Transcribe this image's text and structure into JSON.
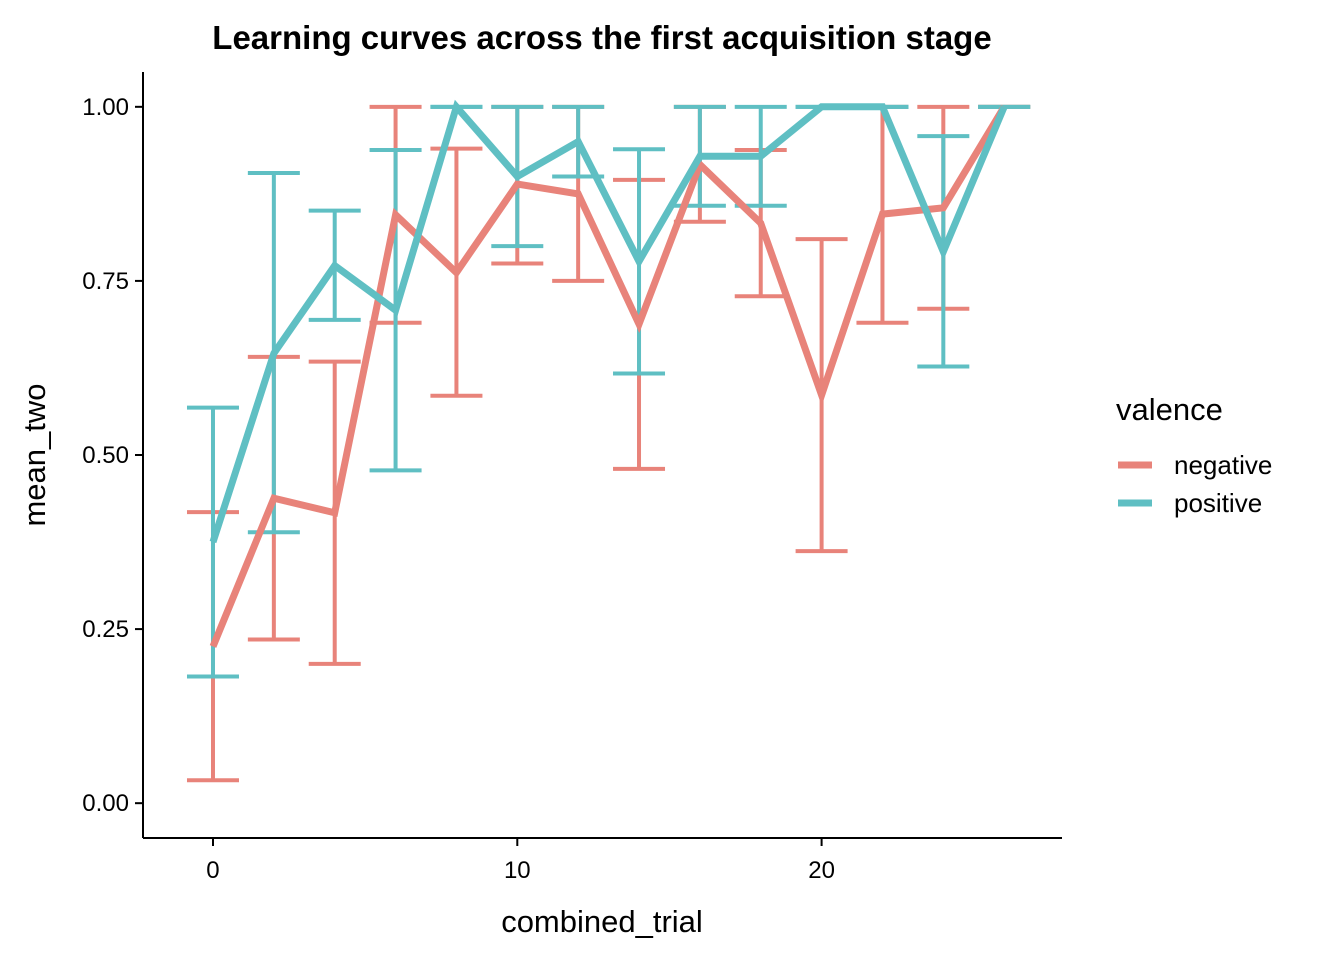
{
  "chart_data": {
    "type": "line",
    "title": "Learning curves across the first acquisition stage",
    "xlabel": "combined_trial",
    "ylabel": "mean_two",
    "xlim": [
      -2.3,
      27.9
    ],
    "ylim": [
      -0.05,
      1.05
    ],
    "x_ticks": [
      0,
      10,
      20
    ],
    "x_tick_labels": [
      "0",
      "10",
      "20"
    ],
    "y_ticks": [
      0,
      0.25,
      0.5,
      0.75,
      1.0
    ],
    "y_tick_labels": [
      "0.00",
      "0.25",
      "0.50",
      "0.75",
      "1.00"
    ],
    "grid": false,
    "legend": {
      "title": "valence",
      "position": "right"
    },
    "series": [
      {
        "name": "negative",
        "color": "#E8837A",
        "x": [
          0,
          2,
          4,
          6,
          8,
          10,
          12,
          14,
          16,
          18,
          20,
          22,
          24,
          26
        ],
        "y": [
          0.225,
          0.438,
          0.417,
          0.845,
          0.762,
          0.889,
          0.875,
          0.688,
          0.917,
          0.833,
          0.586,
          0.846,
          0.855,
          1.0
        ],
        "ymin": [
          0.033,
          0.235,
          0.2,
          0.69,
          0.585,
          0.775,
          0.75,
          0.48,
          0.835,
          0.728,
          0.362,
          0.69,
          0.71,
          1.0
        ],
        "ymax": [
          0.418,
          0.641,
          0.634,
          1.0,
          0.94,
          1.0,
          1.0,
          0.895,
          1.0,
          0.938,
          0.81,
          1.0,
          1.0,
          1.0
        ]
      },
      {
        "name": "positive",
        "color": "#5FBFC3",
        "x": [
          0,
          2,
          4,
          6,
          8,
          10,
          12,
          14,
          16,
          18,
          20,
          22,
          24,
          26
        ],
        "y": [
          0.375,
          0.646,
          0.772,
          0.708,
          1.0,
          0.9,
          0.95,
          0.778,
          0.929,
          0.929,
          1.0,
          1.0,
          0.792,
          1.0
        ],
        "ymin": [
          0.182,
          0.389,
          0.694,
          0.478,
          1.0,
          0.8,
          0.9,
          0.617,
          0.858,
          0.858,
          1.0,
          1.0,
          0.627,
          1.0
        ],
        "ymax": [
          0.568,
          0.905,
          0.851,
          0.938,
          1.0,
          1.0,
          1.0,
          0.939,
          1.0,
          1.0,
          1.0,
          1.0,
          0.958,
          1.0
        ]
      }
    ]
  }
}
